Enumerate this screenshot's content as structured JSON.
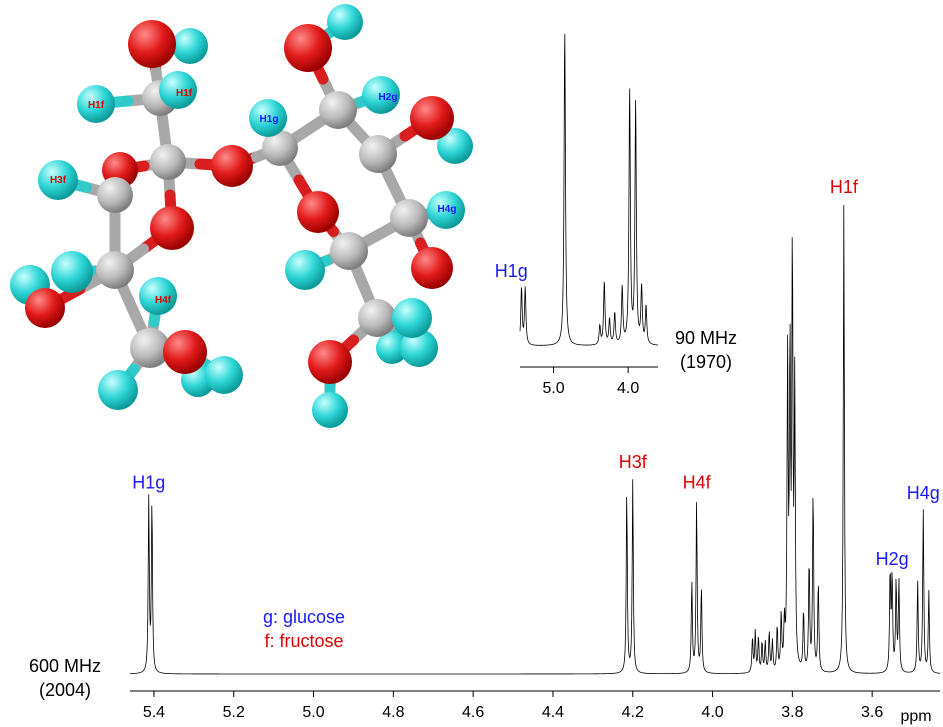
{
  "chart_data": [
    {
      "type": "line",
      "title": "",
      "instrument_label": "600 MHz",
      "year_label": "(2004)",
      "xlabel": "ppm",
      "xlim": [
        5.46,
        3.43
      ],
      "x_reversed": true,
      "x_ticks": [
        "5.4",
        "5.2",
        "5.0",
        "4.8",
        "4.6",
        "4.4",
        "4.2",
        "4.0",
        "3.8",
        "3.6"
      ],
      "legend": [
        {
          "text": "g: glucose",
          "color": "#1a1aff"
        },
        {
          "text": "f: fructose",
          "color": "#e00000"
        }
      ],
      "peaks": [
        {
          "ppm": 5.413,
          "height": 0.34,
          "label": "H1g",
          "label_color": "#1a1aff"
        },
        {
          "ppm": 5.405,
          "height": 0.34
        },
        {
          "ppm": 4.215,
          "height": 0.36
        },
        {
          "ppm": 4.2,
          "height": 0.38,
          "label": "H3f",
          "label_color": "#e00000"
        },
        {
          "ppm": 4.052,
          "height": 0.18
        },
        {
          "ppm": 4.04,
          "height": 0.34,
          "label": "H4f",
          "label_color": "#e00000"
        },
        {
          "ppm": 4.028,
          "height": 0.17
        },
        {
          "ppm": 3.9,
          "height": 0.07
        },
        {
          "ppm": 3.893,
          "height": 0.08
        },
        {
          "ppm": 3.885,
          "height": 0.07
        },
        {
          "ppm": 3.876,
          "height": 0.06
        },
        {
          "ppm": 3.868,
          "height": 0.06
        },
        {
          "ppm": 3.858,
          "height": 0.08
        },
        {
          "ppm": 3.85,
          "height": 0.06
        },
        {
          "ppm": 3.838,
          "height": 0.09
        },
        {
          "ppm": 3.828,
          "height": 0.11
        },
        {
          "ppm": 3.82,
          "height": 0.09
        },
        {
          "ppm": 3.812,
          "height": 0.6
        },
        {
          "ppm": 3.806,
          "height": 0.62
        },
        {
          "ppm": 3.8,
          "height": 0.83
        },
        {
          "ppm": 3.794,
          "height": 0.55
        },
        {
          "ppm": 3.772,
          "height": 0.12
        },
        {
          "ppm": 3.758,
          "height": 0.22
        },
        {
          "ppm": 3.748,
          "height": 0.36
        },
        {
          "ppm": 3.735,
          "height": 0.18
        },
        {
          "ppm": 3.671,
          "height": 0.92,
          "label": "H1f",
          "label_color": "#e00000"
        },
        {
          "ppm": 3.555,
          "height": 0.2
        },
        {
          "ppm": 3.55,
          "height": 0.19,
          "label": "H2g",
          "label_color": "#1a1aff"
        },
        {
          "ppm": 3.54,
          "height": 0.18
        },
        {
          "ppm": 3.533,
          "height": 0.18
        },
        {
          "ppm": 3.486,
          "height": 0.18
        },
        {
          "ppm": 3.472,
          "height": 0.32,
          "label": "H4g",
          "label_color": "#1a1aff"
        },
        {
          "ppm": 3.458,
          "height": 0.16
        }
      ]
    },
    {
      "type": "line",
      "title": "",
      "instrument_label": "90 MHz",
      "year_label": "(1970)",
      "xlim": [
        5.45,
        3.6
      ],
      "x_reversed": true,
      "x_ticks": [
        "5.0",
        "4.0"
      ],
      "peaks": [
        {
          "ppm": 5.43,
          "height": 0.18
        },
        {
          "ppm": 5.38,
          "height": 0.18,
          "label": "H1g",
          "label_color": "#1a1aff"
        },
        {
          "ppm": 4.85,
          "height": 1.0
        },
        {
          "ppm": 4.38,
          "height": 0.06
        },
        {
          "ppm": 4.32,
          "height": 0.2
        },
        {
          "ppm": 4.25,
          "height": 0.08
        },
        {
          "ppm": 4.18,
          "height": 0.1
        },
        {
          "ppm": 4.08,
          "height": 0.18
        },
        {
          "ppm": 3.98,
          "height": 0.8
        },
        {
          "ppm": 3.9,
          "height": 0.76
        },
        {
          "ppm": 3.82,
          "height": 0.18
        },
        {
          "ppm": 3.76,
          "height": 0.12
        }
      ]
    }
  ],
  "molecule": {
    "atom_labels": [
      {
        "text": "H1f",
        "color": "#e00000"
      },
      {
        "text": "H1f",
        "color": "#e00000"
      },
      {
        "text": "H3f",
        "color": "#e00000"
      },
      {
        "text": "H4f",
        "color": "#e00000"
      },
      {
        "text": "H1g",
        "color": "#1a1aff"
      },
      {
        "text": "H2g",
        "color": "#1a1aff"
      },
      {
        "text": "H4g",
        "color": "#1a1aff"
      }
    ],
    "colors": {
      "carbon": "#b9b9b9",
      "oxygen": "#e21b1b",
      "hydrogen": "#2fd6d6"
    }
  }
}
